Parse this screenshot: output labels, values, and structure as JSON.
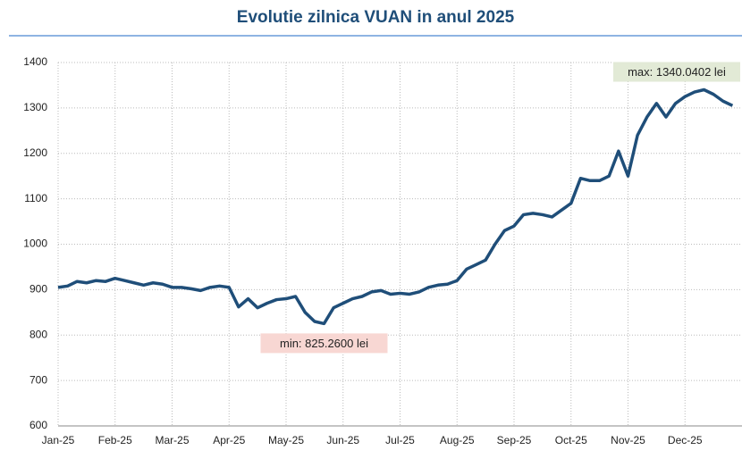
{
  "chart_data": {
    "type": "line",
    "title": "Evolutie zilnica VUAN in anul 2025",
    "categories": [
      "Jan-25",
      null,
      null,
      null,
      null,
      null,
      "Feb-25",
      null,
      null,
      null,
      null,
      null,
      "Mar-25",
      null,
      null,
      null,
      null,
      null,
      "Apr-25",
      null,
      null,
      null,
      null,
      null,
      "May-25",
      null,
      null,
      null,
      null,
      null,
      "Jun-25",
      null,
      null,
      null,
      null,
      null,
      "Jul-25",
      null,
      null,
      null,
      null,
      null,
      "Aug-25",
      null,
      null,
      null,
      null,
      null,
      "Sep-25",
      null,
      null,
      null,
      null,
      null,
      "Oct-25",
      null,
      null,
      null,
      null,
      null,
      "Nov-25",
      null,
      null,
      null,
      null,
      null,
      "Dec-25",
      null,
      null,
      null,
      null,
      null
    ],
    "series": [
      {
        "name": "VUAN",
        "color": "#1f4e79",
        "values": [
          905,
          908,
          918,
          915,
          920,
          918,
          925,
          920,
          915,
          910,
          915,
          912,
          905,
          905,
          902,
          898,
          905,
          908,
          905,
          862,
          880,
          860,
          870,
          878,
          880,
          885,
          850,
          830,
          825.26,
          860,
          870,
          880,
          885,
          895,
          898,
          890,
          892,
          890,
          895,
          905,
          910,
          912,
          920,
          945,
          955,
          965,
          1000,
          1030,
          1040,
          1065,
          1068,
          1065,
          1060,
          1075,
          1090,
          1145,
          1140,
          1140,
          1150,
          1205,
          1150,
          1240,
          1280,
          1310,
          1280,
          1310,
          1325,
          1335,
          1340.0402,
          1330,
          1315,
          1305
        ]
      }
    ],
    "ylim": [
      600,
      1400
    ],
    "yticks": [
      600,
      700,
      800,
      900,
      1000,
      1100,
      1200,
      1300,
      1400
    ],
    "grid": true,
    "annotations": [
      {
        "text": "min: 825.2600 lei",
        "color": "#f8d7d3"
      },
      {
        "text": "max: 1340.0402 lei",
        "color": "#e2ead6"
      }
    ]
  }
}
